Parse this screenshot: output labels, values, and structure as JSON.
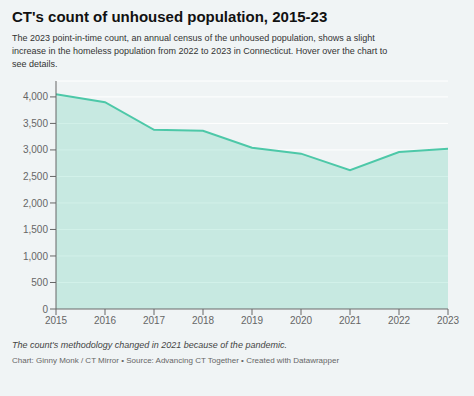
{
  "chart_data": {
    "type": "area",
    "title": "CT's count of unhoused population, 2015-23",
    "subtitle": "The 2023 point-in-time count, an annual census of the unhoused population, shows a slight\nincrease in the homeless population from 2022 to 2023 in Connecticut. Hover over the chart to\nsee details.",
    "annotations": [
      "The count's methodology changed in 2021 because of the pandemic.",
      "Chart: Ginny Monk / CT Mirror • Source: Advancing CT Together • Created with Datawrapper"
    ],
    "x": [
      2015,
      2016,
      2017,
      2018,
      2019,
      2020,
      2021,
      2022,
      2023
    ],
    "values": [
      4050,
      3900,
      3380,
      3360,
      3040,
      2930,
      2620,
      2960,
      3020
    ],
    "color": "#4dc8a8",
    "xlim": [
      2015,
      2023
    ],
    "xticks": [
      2015,
      2016,
      2017,
      2018,
      2019,
      2020,
      2021,
      2022,
      2023
    ],
    "ylim": [
      0,
      4300
    ],
    "yticks": [
      0,
      500,
      {
        "value": 1000,
        "label": "1,000"
      },
      {
        "value": 1500,
        "label": "1,500"
      },
      {
        "value": 2000,
        "label": "2,000"
      },
      {
        "value": 2500,
        "label": "2,500"
      },
      {
        "value": 3000,
        "label": "3,000"
      },
      {
        "value": 3500,
        "label": "3,500"
      },
      {
        "value": 4000,
        "label": "4,000"
      }
    ],
    "grid": true
  }
}
